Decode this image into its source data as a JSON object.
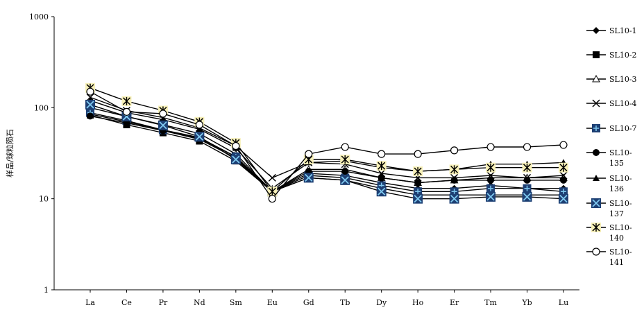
{
  "chart_data": {
    "type": "line",
    "title": "",
    "xlabel": "",
    "ylabel": "样品/球粒陨石",
    "y_scale": "log",
    "ylim": [
      1,
      1000
    ],
    "y_ticks": [
      "1",
      "10",
      "100",
      "1000"
    ],
    "categories": [
      "La",
      "Ce",
      "Pr",
      "Nd",
      "Sm",
      "Eu",
      "Gd",
      "Tb",
      "Dy",
      "Ho",
      "Er",
      "Tm",
      "Yb",
      "Lu"
    ],
    "legend_position": "right",
    "grid": false,
    "series": [
      {
        "name": "SL10-1",
        "legend_lines": [
          "SL10-1"
        ],
        "marker": "diamond",
        "values": [
          85,
          70,
          57,
          46,
          29,
          12,
          19,
          18,
          15,
          13,
          13,
          14,
          13,
          13
        ]
      },
      {
        "name": "SL10-2",
        "legend_lines": [
          "SL10-2"
        ],
        "marker": "square",
        "values": [
          83,
          65,
          53,
          43,
          26,
          12,
          17,
          16,
          13,
          11,
          11,
          11,
          11,
          11
        ]
      },
      {
        "name": "SL10-3",
        "legend_lines": [
          "SL10-3"
        ],
        "marker": "triangle-open",
        "values": [
          100,
          80,
          65,
          52,
          31,
          12,
          21,
          21,
          17,
          15,
          16,
          17,
          17,
          17
        ]
      },
      {
        "name": "SL10-4",
        "legend_lines": [
          "SL10-4"
        ],
        "marker": "x",
        "values": [
          130,
          93,
          78,
          60,
          38,
          17,
          25,
          24,
          19,
          17,
          17,
          18,
          17,
          18
        ]
      },
      {
        "name": "SL10-7",
        "legend_lines": [
          "SL10-7"
        ],
        "marker": "plus-square",
        "values": [
          88,
          72,
          57,
          47,
          29,
          12,
          18,
          17,
          14,
          12,
          12,
          13,
          13,
          12
        ]
      },
      {
        "name": "SL10-135",
        "legend_lines": [
          "SL10-",
          "135"
        ],
        "marker": "circle",
        "values": [
          81,
          68,
          56,
          45,
          28,
          12,
          20,
          20,
          17,
          15,
          16,
          16,
          16,
          16
        ]
      },
      {
        "name": "SL10-136",
        "legend_lines": [
          "SL10-",
          "136"
        ],
        "marker": "triangle",
        "values": [
          120,
          88,
          74,
          58,
          36,
          13,
          25,
          26,
          22,
          20,
          21,
          24,
          24,
          25
        ]
      },
      {
        "name": "SL10-137",
        "legend_lines": [
          "SL10-",
          "137"
        ],
        "marker": "x-square",
        "values": [
          108,
          80,
          64,
          48,
          27,
          12,
          17,
          16,
          12,
          10,
          10,
          10.5,
          10.5,
          10
        ]
      },
      {
        "name": "SL10-140",
        "legend_lines": [
          "SL10-",
          "140"
        ],
        "marker": "star-square",
        "values": [
          165,
          118,
          93,
          70,
          41,
          12,
          27,
          27,
          23,
          20,
          21,
          22,
          22,
          22
        ]
      },
      {
        "name": "SL10-141",
        "legend_lines": [
          "SL10-",
          "141"
        ],
        "marker": "circle-open",
        "values": [
          150,
          90,
          86,
          65,
          38,
          10,
          31,
          37,
          31,
          31,
          34,
          37,
          37,
          39
        ]
      }
    ]
  }
}
